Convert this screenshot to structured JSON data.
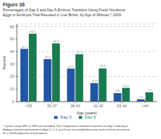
{
  "chart_data": {
    "type": "bar",
    "title": "Figure 38",
    "subtitle": "Percentages of Day 3 and Day 5 Embryo Transfers Using Fresh Nondonor\nEggs or Embryos That Resulted in Live Births, by Age of Woman,* 2009",
    "annotations": [
      "* Cycles using GIFT or ZIFT are excluded. This comparison is limited to transfers on day 3 and day 5.\nEmbryo transfers performed on days 1, 2, 4, and 6 are not included because each of these accounted\nfor a small proportion of procedures."
    ],
    "xlabel": "Age (years)",
    "ylabel": "Percent",
    "categories": [
      "<35",
      "35-37",
      "38-40",
      "41-42",
      "43-44",
      ">44"
    ],
    "series": [
      {
        "name": "Day 3",
        "color": "#2255a4",
        "values": [
          42.1,
          34.0,
          26.4,
          14.8,
          6.8,
          1.8
        ],
        "value_labels": [
          "42.1",
          "34.0",
          "26.4",
          "14.8",
          "6.8",
          "1.8"
        ]
      },
      {
        "name": "Day 5",
        "color": "#1a7a50",
        "values": [
          54.2,
          46.5,
          37.7,
          26.5,
          11.0,
          7.4
        ],
        "value_labels": [
          "54.2",
          "46.5",
          "37.7",
          "26.5",
          "11.0",
          "7.4"
        ]
      }
    ],
    "ylim": [
      0,
      62
    ],
    "yticks": [
      0,
      10,
      20,
      30,
      40,
      50,
      60
    ],
    "grid": true,
    "data_labels": true
  }
}
